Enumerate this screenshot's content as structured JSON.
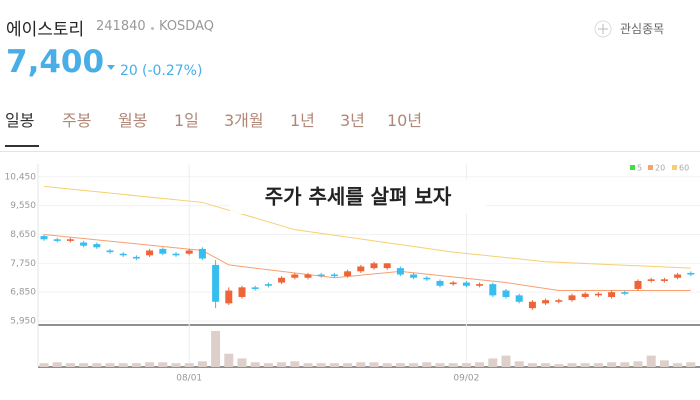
{
  "header": {
    "name": "에이스토리",
    "code": "241840",
    "market": "KOSDAQ",
    "watch": "관심종목"
  },
  "quote": {
    "price": "7,400",
    "change": "20",
    "change_pct": "(-0.27%)"
  },
  "tabs": [
    "일봉",
    "주봉",
    "월봉",
    "1일",
    "3개월",
    "1년",
    "3년",
    "10년"
  ],
  "chart_data": {
    "type": "candlestick",
    "title": "주가 추세를 살펴 보자",
    "categories": [
      null,
      null,
      null,
      null,
      null,
      null,
      null,
      null,
      null,
      null,
      null,
      "08/01",
      null,
      null,
      null,
      null,
      null,
      null,
      null,
      null,
      null,
      null,
      null,
      null,
      null,
      null,
      null,
      null,
      null,
      null,
      null,
      null,
      "09/02",
      null,
      null,
      null,
      null,
      null,
      null,
      null,
      null,
      null,
      null,
      null,
      null,
      null,
      null,
      null,
      null,
      null
    ],
    "open": [
      8600,
      8500,
      8450,
      8400,
      8350,
      8150,
      8050,
      7950,
      8000,
      8200,
      8050,
      8050,
      8200,
      7700,
      6500,
      6700,
      7000,
      7100,
      7150,
      7300,
      7300,
      7400,
      7400,
      7350,
      7500,
      7600,
      7600,
      7600,
      7400,
      7300,
      7200,
      7100,
      7150,
      7050,
      7100,
      6900,
      6750,
      6350,
      6500,
      6550,
      6600,
      6700,
      6750,
      6700,
      6850,
      6950,
      7200,
      7200,
      7300,
      7450
    ],
    "high": [
      8650,
      8550,
      8550,
      8450,
      8400,
      8200,
      8100,
      8000,
      8200,
      8250,
      8100,
      8200,
      8250,
      7850,
      7000,
      7050,
      7050,
      7150,
      7350,
      7450,
      7450,
      7450,
      7450,
      7550,
      7700,
      7800,
      7750,
      7650,
      7450,
      7350,
      7250,
      7200,
      7200,
      7150,
      7150,
      6950,
      6800,
      6600,
      6650,
      6650,
      6800,
      6850,
      6850,
      6900,
      6900,
      7250,
      7300,
      7300,
      7450,
      7500
    ],
    "low": [
      8450,
      8400,
      8400,
      8250,
      8200,
      8050,
      7950,
      7850,
      7950,
      8000,
      7950,
      8000,
      7850,
      6350,
      6450,
      6650,
      6900,
      7000,
      7100,
      7250,
      7250,
      7300,
      7300,
      7300,
      7450,
      7550,
      7550,
      7350,
      7250,
      7200,
      7000,
      7050,
      7000,
      7000,
      6700,
      6650,
      6500,
      6300,
      6450,
      6500,
      6550,
      6650,
      6700,
      6650,
      6750,
      6900,
      7150,
      7150,
      7250,
      7350
    ],
    "close": [
      8500,
      8450,
      8500,
      8300,
      8250,
      8100,
      8000,
      7900,
      8150,
      8050,
      8000,
      8150,
      7900,
      6550,
      6900,
      7000,
      6950,
      7050,
      7300,
      7400,
      7400,
      7350,
      7350,
      7500,
      7650,
      7750,
      7750,
      7400,
      7300,
      7250,
      7050,
      7150,
      7050,
      7100,
      6750,
      6700,
      6550,
      6550,
      6600,
      6600,
      6750,
      6800,
      6800,
      6850,
      6800,
      7200,
      7250,
      7250,
      7400,
      7400
    ],
    "volume": [
      4,
      5,
      4,
      4,
      4,
      4,
      4,
      4,
      5,
      5,
      4,
      4,
      6,
      38,
      14,
      9,
      5,
      4,
      5,
      6,
      4,
      4,
      4,
      4,
      5,
      5,
      4,
      4,
      4,
      5,
      4,
      4,
      4,
      5,
      9,
      12,
      6,
      4,
      4,
      3,
      4,
      4,
      4,
      5,
      5,
      6,
      12,
      7,
      4,
      5
    ],
    "up_color": "#ee6436",
    "down_color": "#38bdef",
    "volume_color": "#ddcfca",
    "ylim": [
      5825,
      10600
    ],
    "yticks": [
      {
        "value": 5950,
        "label": "5,950"
      },
      {
        "value": 6850,
        "label": "6,850"
      },
      {
        "value": 7750,
        "label": "7,750"
      },
      {
        "value": 8650,
        "label": "8,650"
      },
      {
        "value": 9550,
        "label": "9,550"
      },
      {
        "value": 10450,
        "label": "10,450"
      }
    ],
    "volume_ylim": [
      0,
      40
    ],
    "grid": true,
    "series": [
      {
        "name": "5",
        "color": "#3ee03e"
      },
      {
        "name": "20",
        "color": "#f7a070",
        "x": [
          0,
          12,
          14,
          22,
          27,
          35,
          39,
          49
        ],
        "values": [
          8650,
          8150,
          7700,
          7300,
          7500,
          7150,
          6900,
          6900
        ]
      },
      {
        "name": "60",
        "color": "#f5d070",
        "x": [
          0,
          12,
          19,
          31,
          38,
          49
        ],
        "values": [
          10150,
          9650,
          8800,
          8100,
          7800,
          7600
        ]
      }
    ]
  }
}
